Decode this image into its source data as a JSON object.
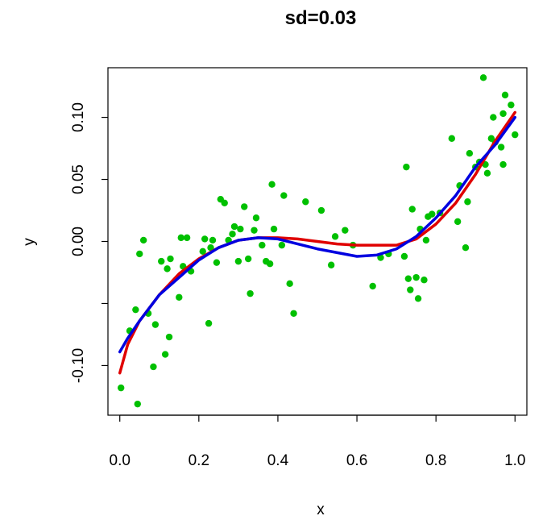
{
  "chart_data": {
    "type": "scatter",
    "title": "sd=0.03",
    "xlabel": "x",
    "ylabel": "y",
    "xlim": [
      -0.03,
      1.03
    ],
    "ylim": [
      -0.14,
      0.14
    ],
    "x_ticks": [
      {
        "value": 0.0,
        "label": "0.0"
      },
      {
        "value": 0.2,
        "label": "0.2"
      },
      {
        "value": 0.4,
        "label": "0.4"
      },
      {
        "value": 0.6,
        "label": "0.6"
      },
      {
        "value": 0.8,
        "label": "0.8"
      },
      {
        "value": 1.0,
        "label": "1.0"
      }
    ],
    "y_ticks": [
      {
        "value": -0.1,
        "label": "-0.10"
      },
      {
        "value": -0.05,
        "label": ""
      },
      {
        "value": 0.0,
        "label": "0.00"
      },
      {
        "value": 0.05,
        "label": "0.05"
      },
      {
        "value": 0.1,
        "label": "0.10"
      }
    ],
    "grid": false,
    "colors": {
      "points": "#00c000",
      "curve_red": "#e00000",
      "curve_blue": "#0000e0"
    },
    "series": [
      {
        "type": "scatter",
        "color": "#00c000",
        "points": [
          [
            0.003,
            -0.118
          ],
          [
            0.025,
            -0.072
          ],
          [
            0.04,
            -0.055
          ],
          [
            0.045,
            -0.131
          ],
          [
            0.05,
            -0.01
          ],
          [
            0.06,
            0.001
          ],
          [
            0.072,
            -0.058
          ],
          [
            0.085,
            -0.101
          ],
          [
            0.09,
            -0.067
          ],
          [
            0.105,
            -0.016
          ],
          [
            0.115,
            -0.091
          ],
          [
            0.125,
            -0.077
          ],
          [
            0.12,
            -0.022
          ],
          [
            0.128,
            -0.014
          ],
          [
            0.15,
            -0.045
          ],
          [
            0.155,
            0.003
          ],
          [
            0.16,
            -0.02
          ],
          [
            0.17,
            0.003
          ],
          [
            0.18,
            -0.024
          ],
          [
            0.21,
            -0.008
          ],
          [
            0.215,
            0.002
          ],
          [
            0.225,
            -0.066
          ],
          [
            0.23,
            -0.005
          ],
          [
            0.235,
            0.001
          ],
          [
            0.245,
            -0.017
          ],
          [
            0.255,
            0.034
          ],
          [
            0.265,
            0.031
          ],
          [
            0.275,
            0.001
          ],
          [
            0.285,
            0.006
          ],
          [
            0.29,
            0.012
          ],
          [
            0.3,
            -0.016
          ],
          [
            0.305,
            0.01
          ],
          [
            0.315,
            0.028
          ],
          [
            0.325,
            -0.014
          ],
          [
            0.33,
            -0.042
          ],
          [
            0.34,
            0.009
          ],
          [
            0.345,
            0.019
          ],
          [
            0.36,
            -0.003
          ],
          [
            0.37,
            -0.016
          ],
          [
            0.38,
            -0.018
          ],
          [
            0.385,
            0.046
          ],
          [
            0.39,
            0.01
          ],
          [
            0.41,
            -0.003
          ],
          [
            0.415,
            0.037
          ],
          [
            0.43,
            -0.034
          ],
          [
            0.44,
            -0.058
          ],
          [
            0.47,
            0.032
          ],
          [
            0.51,
            0.025
          ],
          [
            0.535,
            -0.019
          ],
          [
            0.545,
            0.004
          ],
          [
            0.57,
            0.009
          ],
          [
            0.59,
            -0.003
          ],
          [
            0.64,
            -0.036
          ],
          [
            0.66,
            -0.013
          ],
          [
            0.68,
            -0.01
          ],
          [
            0.72,
            -0.012
          ],
          [
            0.725,
            0.06
          ],
          [
            0.73,
            -0.03
          ],
          [
            0.735,
            -0.039
          ],
          [
            0.74,
            0.026
          ],
          [
            0.75,
            -0.029
          ],
          [
            0.755,
            -0.046
          ],
          [
            0.76,
            0.01
          ],
          [
            0.77,
            -0.031
          ],
          [
            0.775,
            0.001
          ],
          [
            0.78,
            0.02
          ],
          [
            0.79,
            0.022
          ],
          [
            0.81,
            0.023
          ],
          [
            0.84,
            0.083
          ],
          [
            0.855,
            0.016
          ],
          [
            0.86,
            0.045
          ],
          [
            0.875,
            -0.005
          ],
          [
            0.88,
            0.032
          ],
          [
            0.885,
            0.071
          ],
          [
            0.9,
            0.06
          ],
          [
            0.91,
            0.064
          ],
          [
            0.92,
            0.132
          ],
          [
            0.925,
            0.062
          ],
          [
            0.93,
            0.055
          ],
          [
            0.94,
            0.083
          ],
          [
            0.945,
            0.1
          ],
          [
            0.95,
            0.08
          ],
          [
            0.965,
            0.076
          ],
          [
            0.97,
            0.103
          ],
          [
            0.97,
            0.062
          ],
          [
            0.975,
            0.118
          ],
          [
            0.99,
            0.11
          ],
          [
            1.0,
            0.086
          ]
        ]
      },
      {
        "type": "line",
        "color": "#e00000",
        "points": [
          [
            0.0,
            -0.106
          ],
          [
            0.02,
            -0.083
          ],
          [
            0.05,
            -0.064
          ],
          [
            0.1,
            -0.043
          ],
          [
            0.15,
            -0.026
          ],
          [
            0.2,
            -0.014
          ],
          [
            0.25,
            -0.005
          ],
          [
            0.3,
            0.001
          ],
          [
            0.35,
            0.003
          ],
          [
            0.4,
            0.003
          ],
          [
            0.45,
            0.002
          ],
          [
            0.5,
            0.0
          ],
          [
            0.55,
            -0.002
          ],
          [
            0.6,
            -0.003
          ],
          [
            0.65,
            -0.003
          ],
          [
            0.7,
            -0.003
          ],
          [
            0.75,
            0.002
          ],
          [
            0.8,
            0.014
          ],
          [
            0.85,
            0.031
          ],
          [
            0.9,
            0.054
          ],
          [
            0.95,
            0.081
          ],
          [
            1.0,
            0.104
          ]
        ]
      },
      {
        "type": "line",
        "color": "#0000e0",
        "points": [
          [
            0.0,
            -0.089
          ],
          [
            0.02,
            -0.078
          ],
          [
            0.05,
            -0.064
          ],
          [
            0.1,
            -0.043
          ],
          [
            0.15,
            -0.029
          ],
          [
            0.2,
            -0.015
          ],
          [
            0.25,
            -0.005
          ],
          [
            0.3,
            0.001
          ],
          [
            0.35,
            0.003
          ],
          [
            0.4,
            0.002
          ],
          [
            0.45,
            -0.002
          ],
          [
            0.5,
            -0.006
          ],
          [
            0.55,
            -0.009
          ],
          [
            0.6,
            -0.012
          ],
          [
            0.65,
            -0.011
          ],
          [
            0.7,
            -0.006
          ],
          [
            0.75,
            0.004
          ],
          [
            0.8,
            0.019
          ],
          [
            0.85,
            0.037
          ],
          [
            0.9,
            0.06
          ],
          [
            0.95,
            0.078
          ],
          [
            1.0,
            0.1
          ]
        ]
      }
    ]
  }
}
